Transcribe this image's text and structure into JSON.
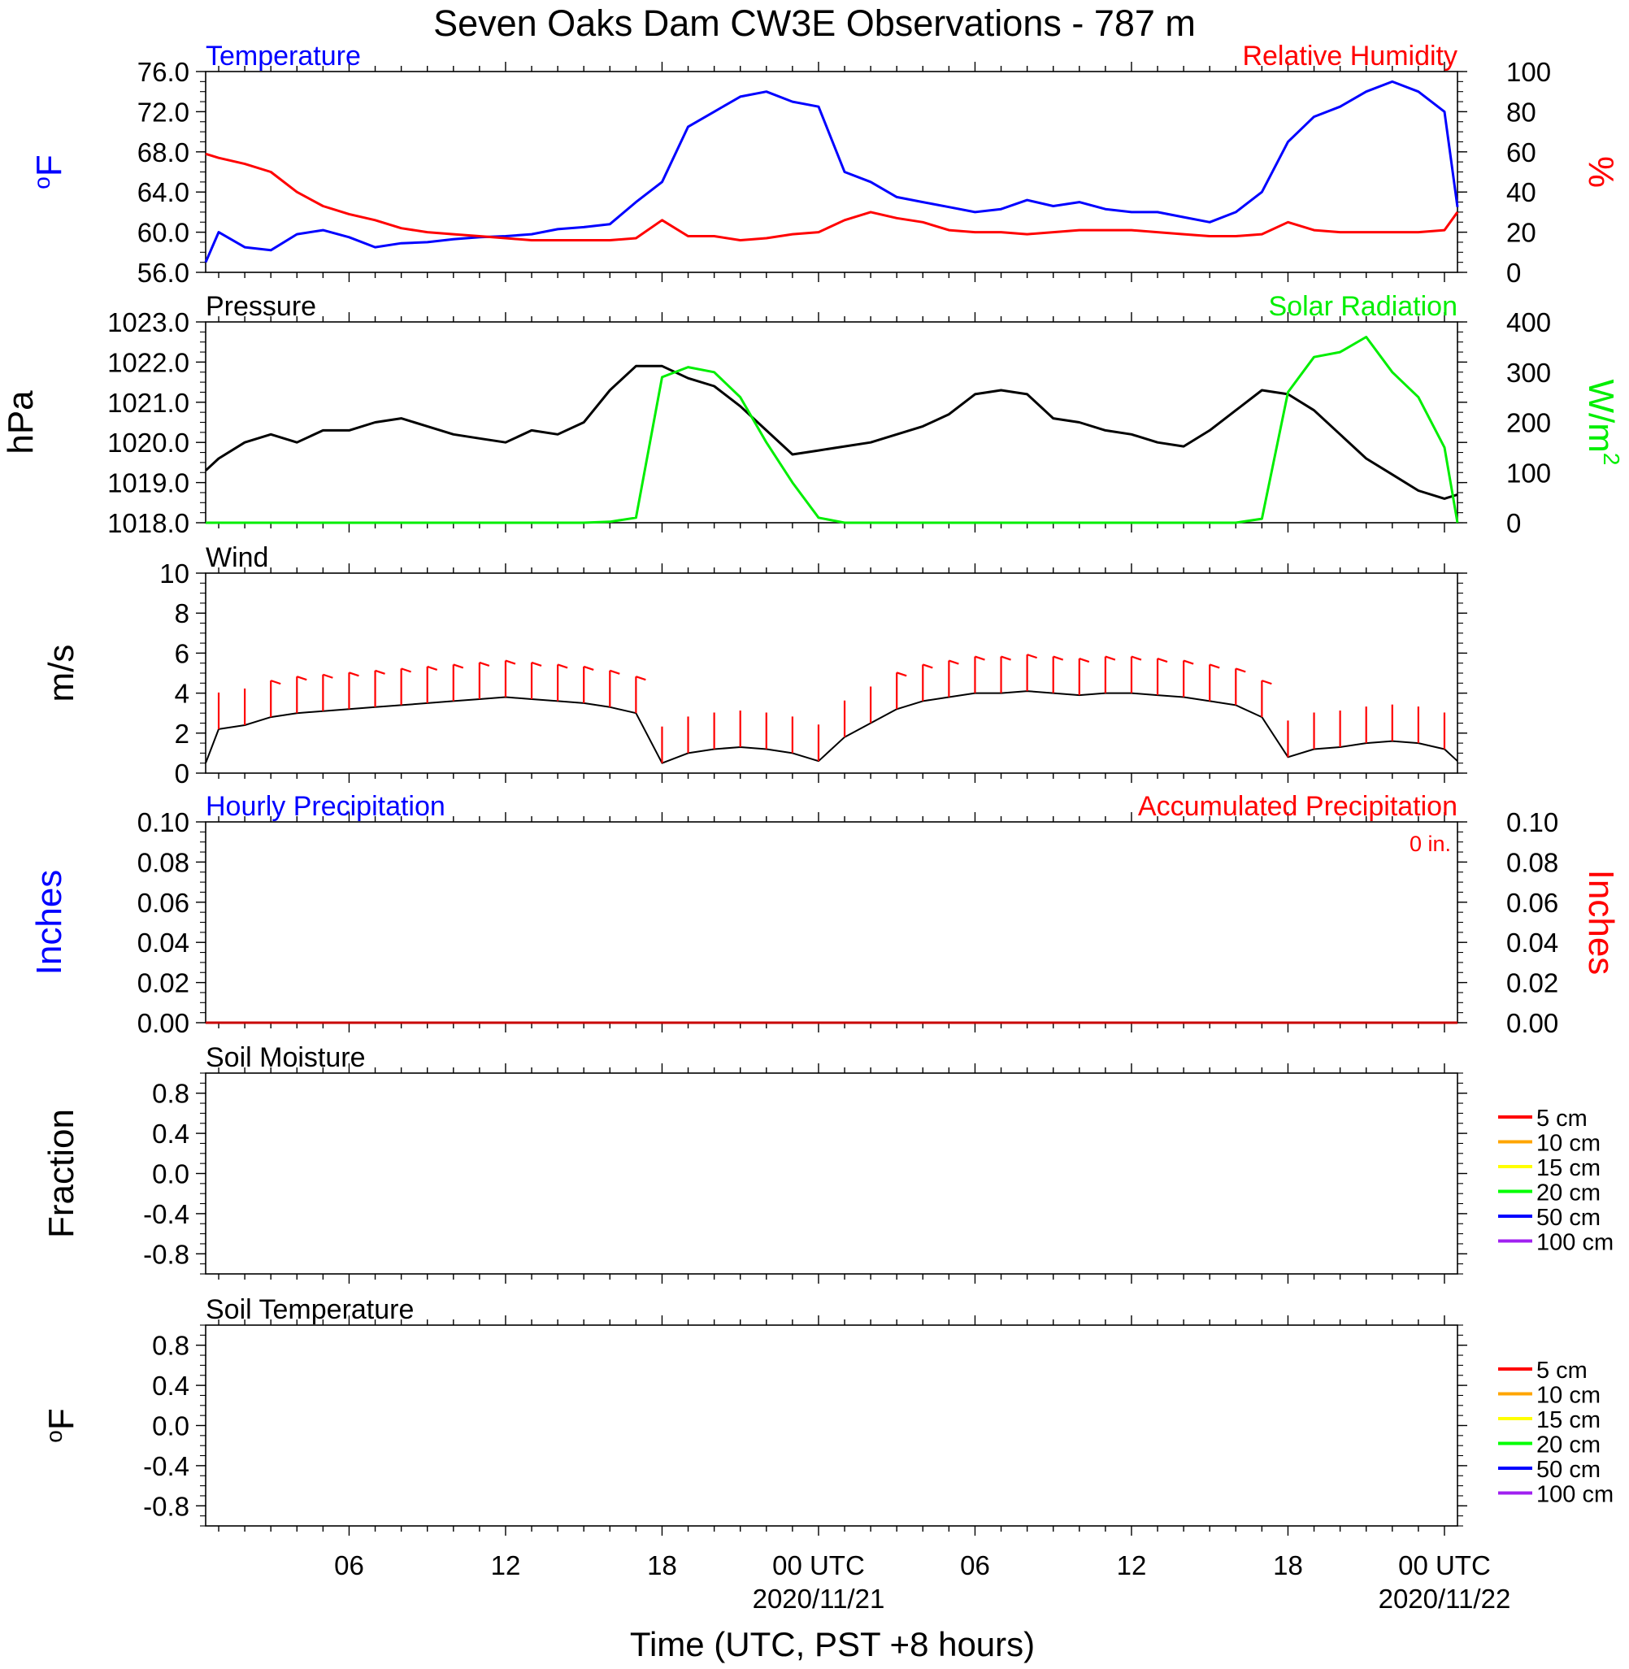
{
  "title": "Seven Oaks Dam CW3E Observations - 787 m",
  "xlabel": "Time (UTC, PST +8 hours)",
  "x_ticks": [
    {
      "label": "06",
      "date": ""
    },
    {
      "label": "12",
      "date": ""
    },
    {
      "label": "18",
      "date": ""
    },
    {
      "label": "00 UTC",
      "date": "2020/11/21"
    },
    {
      "label": "06",
      "date": ""
    },
    {
      "label": "12",
      "date": ""
    },
    {
      "label": "18",
      "date": ""
    },
    {
      "label": "00 UTC",
      "date": "2020/11/22"
    }
  ],
  "colors": {
    "temperature": "#0000ff",
    "humidity": "#ff0000",
    "pressure": "#000000",
    "solar": "#00ee00",
    "wind": "#000000",
    "barb": "#ff0000",
    "hourly_precip": "#0000ff",
    "accum_precip": "#ff0000"
  },
  "chart_data": [
    {
      "type": "line",
      "title_left": "Temperature",
      "title_right": "Relative Humidity",
      "ylabel_left": "°F",
      "ylabel_right": "%",
      "x": [
        "2020-11-20T00:30",
        "2020-11-20T01:00",
        "2020-11-20T02:00",
        "2020-11-20T03:00",
        "2020-11-20T04:00",
        "2020-11-20T05:00",
        "2020-11-20T06:00",
        "2020-11-20T07:00",
        "2020-11-20T08:00",
        "2020-11-20T09:00",
        "2020-11-20T10:00",
        "2020-11-20T11:00",
        "2020-11-20T12:00",
        "2020-11-20T13:00",
        "2020-11-20T14:00",
        "2020-11-20T15:00",
        "2020-11-20T16:00",
        "2020-11-20T17:00",
        "2020-11-20T18:00",
        "2020-11-20T19:00",
        "2020-11-20T20:00",
        "2020-11-20T21:00",
        "2020-11-20T22:00",
        "2020-11-20T23:00",
        "2020-11-21T00:00",
        "2020-11-21T01:00",
        "2020-11-21T02:00",
        "2020-11-21T03:00",
        "2020-11-21T04:00",
        "2020-11-21T05:00",
        "2020-11-21T06:00",
        "2020-11-21T07:00",
        "2020-11-21T08:00",
        "2020-11-21T09:00",
        "2020-11-21T10:00",
        "2020-11-21T11:00",
        "2020-11-21T12:00",
        "2020-11-21T13:00",
        "2020-11-21T14:00",
        "2020-11-21T15:00",
        "2020-11-21T16:00",
        "2020-11-21T17:00",
        "2020-11-21T18:00",
        "2020-11-21T19:00",
        "2020-11-21T20:00",
        "2020-11-21T21:00",
        "2020-11-21T22:00",
        "2020-11-21T23:00",
        "2020-11-22T00:00",
        "2020-11-22T00:30"
      ],
      "left_axis": {
        "ylim": [
          56,
          76
        ],
        "ticks": [
          "56.0",
          "60.0",
          "64.0",
          "68.0",
          "72.0",
          "76.0"
        ]
      },
      "right_axis": {
        "ylim": [
          0,
          100
        ],
        "ticks": [
          "0",
          "20",
          "40",
          "60",
          "80",
          "100"
        ]
      },
      "series": [
        {
          "name": "Temperature",
          "axis": "left",
          "values": [
            57.0,
            60.0,
            58.5,
            58.2,
            59.8,
            60.2,
            59.5,
            58.5,
            58.9,
            59.0,
            59.3,
            59.5,
            59.6,
            59.8,
            60.3,
            60.5,
            60.8,
            63.0,
            65.0,
            70.5,
            72.0,
            73.5,
            74.0,
            73.0,
            72.5,
            66.0,
            65.0,
            63.5,
            63.0,
            62.5,
            62.0,
            62.3,
            63.2,
            62.6,
            63.0,
            62.3,
            62.0,
            62.0,
            61.5,
            61.0,
            62.0,
            64.0,
            69.0,
            71.5,
            72.5,
            74.0,
            75.0,
            74.0,
            72.0,
            62.5
          ]
        },
        {
          "name": "Relative Humidity",
          "axis": "right",
          "values": [
            59,
            57,
            54,
            50,
            40,
            33,
            29,
            26,
            22,
            20,
            19,
            18,
            17,
            16,
            16,
            16,
            16,
            17,
            26,
            18,
            18,
            16,
            17,
            19,
            20,
            26,
            30,
            27,
            25,
            21,
            20,
            20,
            19,
            20,
            21,
            21,
            21,
            20,
            19,
            18,
            18,
            19,
            25,
            21,
            20,
            20,
            20,
            20,
            21,
            30
          ]
        }
      ]
    },
    {
      "type": "line",
      "title_left": "Pressure",
      "title_right": "Solar Radiation",
      "ylabel_left": "hPa",
      "ylabel_right": "W/m",
      "ylabel_right_sup": "2",
      "x": [
        "2020-11-20T00:30",
        "2020-11-20T01:00",
        "2020-11-20T02:00",
        "2020-11-20T03:00",
        "2020-11-20T04:00",
        "2020-11-20T05:00",
        "2020-11-20T06:00",
        "2020-11-20T07:00",
        "2020-11-20T08:00",
        "2020-11-20T09:00",
        "2020-11-20T10:00",
        "2020-11-20T11:00",
        "2020-11-20T12:00",
        "2020-11-20T13:00",
        "2020-11-20T14:00",
        "2020-11-20T15:00",
        "2020-11-20T16:00",
        "2020-11-20T17:00",
        "2020-11-20T18:00",
        "2020-11-20T19:00",
        "2020-11-20T20:00",
        "2020-11-20T21:00",
        "2020-11-20T22:00",
        "2020-11-20T23:00",
        "2020-11-21T00:00",
        "2020-11-21T01:00",
        "2020-11-21T02:00",
        "2020-11-21T03:00",
        "2020-11-21T04:00",
        "2020-11-21T05:00",
        "2020-11-21T06:00",
        "2020-11-21T07:00",
        "2020-11-21T08:00",
        "2020-11-21T09:00",
        "2020-11-21T10:00",
        "2020-11-21T11:00",
        "2020-11-21T12:00",
        "2020-11-21T13:00",
        "2020-11-21T14:00",
        "2020-11-21T15:00",
        "2020-11-21T16:00",
        "2020-11-21T17:00",
        "2020-11-21T18:00",
        "2020-11-21T19:00",
        "2020-11-21T20:00",
        "2020-11-21T21:00",
        "2020-11-21T22:00",
        "2020-11-21T23:00",
        "2020-11-22T00:00",
        "2020-11-22T00:30"
      ],
      "left_axis": {
        "ylim": [
          1018,
          1023
        ],
        "ticks": [
          "1018.0",
          "1019.0",
          "1020.0",
          "1021.0",
          "1022.0",
          "1023.0"
        ]
      },
      "right_axis": {
        "ylim": [
          0,
          400
        ],
        "ticks": [
          "0",
          "100",
          "200",
          "300",
          "400"
        ]
      },
      "series": [
        {
          "name": "Pressure",
          "axis": "left",
          "values": [
            1019.3,
            1019.6,
            1020.0,
            1020.2,
            1020.0,
            1020.3,
            1020.3,
            1020.5,
            1020.6,
            1020.4,
            1020.2,
            1020.1,
            1020.0,
            1020.3,
            1020.2,
            1020.5,
            1021.3,
            1021.9,
            1021.9,
            1021.6,
            1021.4,
            1020.9,
            1020.3,
            1019.7,
            1019.8,
            1019.9,
            1020.0,
            1020.2,
            1020.4,
            1020.7,
            1021.2,
            1021.3,
            1021.2,
            1020.6,
            1020.5,
            1020.3,
            1020.2,
            1020.0,
            1019.9,
            1020.3,
            1020.8,
            1021.3,
            1021.2,
            1020.8,
            1020.2,
            1019.6,
            1019.2,
            1018.8,
            1018.6,
            1018.7
          ]
        },
        {
          "name": "Solar Radiation",
          "axis": "right",
          "values": [
            0,
            0,
            0,
            0,
            0,
            0,
            0,
            0,
            0,
            0,
            0,
            0,
            0,
            0,
            0,
            0,
            2,
            10,
            290,
            310,
            300,
            250,
            160,
            80,
            10,
            0,
            0,
            0,
            0,
            0,
            0,
            0,
            0,
            0,
            0,
            0,
            0,
            0,
            0,
            0,
            0,
            8,
            260,
            330,
            340,
            370,
            300,
            250,
            150,
            0
          ]
        }
      ]
    },
    {
      "type": "line",
      "title_left": "Wind",
      "ylabel_left": "m/s",
      "x": [
        "2020-11-20T00:30",
        "2020-11-20T01:00",
        "2020-11-20T02:00",
        "2020-11-20T03:00",
        "2020-11-20T04:00",
        "2020-11-20T05:00",
        "2020-11-20T06:00",
        "2020-11-20T07:00",
        "2020-11-20T08:00",
        "2020-11-20T09:00",
        "2020-11-20T10:00",
        "2020-11-20T11:00",
        "2020-11-20T12:00",
        "2020-11-20T13:00",
        "2020-11-20T14:00",
        "2020-11-20T15:00",
        "2020-11-20T16:00",
        "2020-11-20T17:00",
        "2020-11-20T18:00",
        "2020-11-20T19:00",
        "2020-11-20T20:00",
        "2020-11-20T21:00",
        "2020-11-20T22:00",
        "2020-11-20T23:00",
        "2020-11-21T00:00",
        "2020-11-21T01:00",
        "2020-11-21T02:00",
        "2020-11-21T03:00",
        "2020-11-21T04:00",
        "2020-11-21T05:00",
        "2020-11-21T06:00",
        "2020-11-21T07:00",
        "2020-11-21T08:00",
        "2020-11-21T09:00",
        "2020-11-21T10:00",
        "2020-11-21T11:00",
        "2020-11-21T12:00",
        "2020-11-21T13:00",
        "2020-11-21T14:00",
        "2020-11-21T15:00",
        "2020-11-21T16:00",
        "2020-11-21T17:00",
        "2020-11-21T18:00",
        "2020-11-21T19:00",
        "2020-11-21T20:00",
        "2020-11-21T21:00",
        "2020-11-21T22:00",
        "2020-11-21T23:00",
        "2020-11-22T00:00",
        "2020-11-22T00:30"
      ],
      "left_axis": {
        "ylim": [
          0,
          10
        ],
        "ticks": [
          "0",
          "2",
          "4",
          "6",
          "8",
          "10"
        ]
      },
      "series": [
        {
          "name": "Wind",
          "axis": "left",
          "values": [
            0.5,
            2.2,
            2.4,
            2.8,
            3.0,
            3.1,
            3.2,
            3.3,
            3.4,
            3.5,
            3.6,
            3.7,
            3.8,
            3.7,
            3.6,
            3.5,
            3.3,
            3.0,
            0.5,
            1.0,
            1.2,
            1.3,
            1.2,
            1.0,
            0.6,
            1.8,
            2.5,
            3.2,
            3.6,
            3.8,
            4.0,
            4.0,
            4.1,
            4.0,
            3.9,
            4.0,
            4.0,
            3.9,
            3.8,
            3.6,
            3.4,
            2.8,
            0.8,
            1.2,
            1.3,
            1.5,
            1.6,
            1.5,
            1.2,
            0.6
          ]
        }
      ]
    },
    {
      "type": "line",
      "title_left": "Hourly Precipitation",
      "title_right": "Accumulated Precipitation",
      "annotation": "0 in.",
      "ylabel_left": "Inches",
      "ylabel_right": "Inches",
      "x": [
        "2020-11-20T00:30",
        "2020-11-22T00:30"
      ],
      "left_axis": {
        "ylim": [
          0,
          0.1
        ],
        "ticks": [
          "0.00",
          "0.02",
          "0.04",
          "0.06",
          "0.08",
          "0.10"
        ]
      },
      "right_axis": {
        "ylim": [
          0,
          0.1
        ],
        "ticks": [
          "0.00",
          "0.02",
          "0.04",
          "0.06",
          "0.08",
          "0.10"
        ]
      },
      "series": [
        {
          "name": "Hourly Precipitation",
          "axis": "left",
          "values": [
            0,
            0
          ]
        },
        {
          "name": "Accumulated Precipitation",
          "axis": "right",
          "values": [
            0,
            0
          ]
        }
      ]
    },
    {
      "type": "line",
      "title_left": "Soil Moisture",
      "ylabel_left": "Fraction",
      "left_axis": {
        "ylim": [
          -1,
          1
        ],
        "ticks": [
          "-0.8",
          "-0.4",
          "0.0",
          "0.4",
          "0.8"
        ]
      },
      "legend": {
        "placement": "right",
        "entries": [
          {
            "name": "5 cm",
            "color": "#ff0000"
          },
          {
            "name": "10 cm",
            "color": "#ffa500"
          },
          {
            "name": "15 cm",
            "color": "#ffff00"
          },
          {
            "name": "20 cm",
            "color": "#00ff00"
          },
          {
            "name": "50 cm",
            "color": "#0000ff"
          },
          {
            "name": "100 cm",
            "color": "#a020f0"
          }
        ]
      },
      "series": []
    },
    {
      "type": "line",
      "title_left": "Soil Temperature",
      "ylabel_left": "°F",
      "left_axis": {
        "ylim": [
          -1,
          1
        ],
        "ticks": [
          "-0.8",
          "-0.4",
          "0.0",
          "0.4",
          "0.8"
        ]
      },
      "legend": {
        "placement": "right",
        "entries": [
          {
            "name": "5 cm",
            "color": "#ff0000"
          },
          {
            "name": "10 cm",
            "color": "#ffa500"
          },
          {
            "name": "15 cm",
            "color": "#ffff00"
          },
          {
            "name": "20 cm",
            "color": "#00ff00"
          },
          {
            "name": "50 cm",
            "color": "#0000ff"
          },
          {
            "name": "100 cm",
            "color": "#a020f0"
          }
        ]
      },
      "series": []
    }
  ]
}
